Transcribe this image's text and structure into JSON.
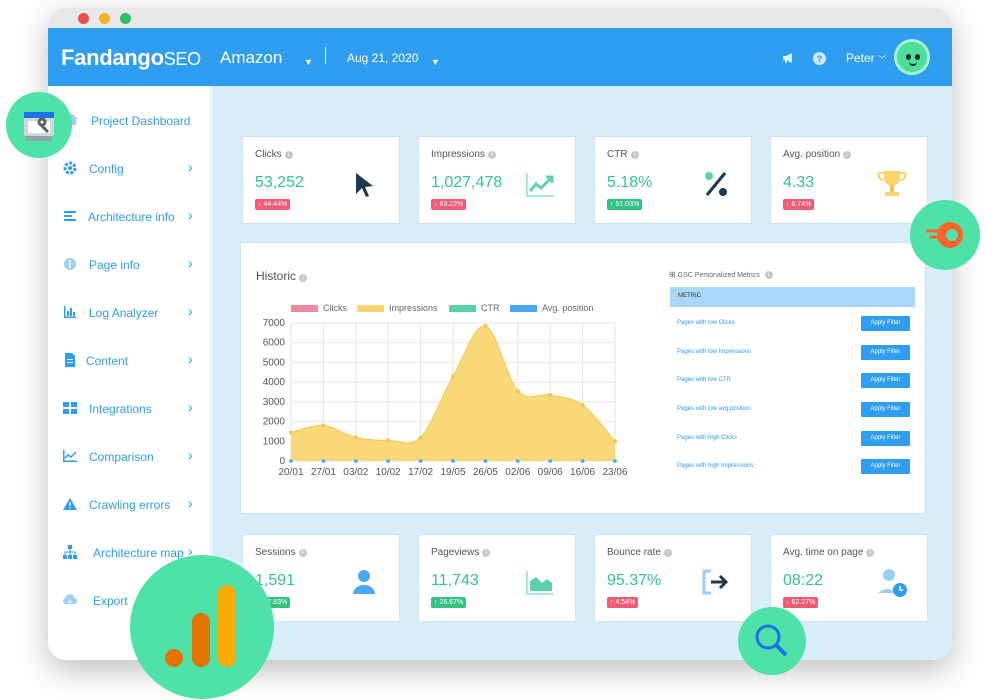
{
  "app": {
    "logo_main": "Fandango",
    "logo_suffix": "SEO"
  },
  "header": {
    "project": "Amazon",
    "date": "Aug 21, 2020",
    "help_label": "?",
    "user": "Peter"
  },
  "sidebar": {
    "items": [
      {
        "label": "Project Dashboard",
        "icon": "home-icon"
      },
      {
        "label": "Config",
        "icon": "gear-icon"
      },
      {
        "label": "Architecture info",
        "icon": "bars-icon"
      },
      {
        "label": "Page info",
        "icon": "info-icon"
      },
      {
        "label": "Log Analyzer",
        "icon": "bar-chart-icon"
      },
      {
        "label": "Content",
        "icon": "document-icon"
      },
      {
        "label": "Integrations",
        "icon": "grid-icon"
      },
      {
        "label": "Comparison",
        "icon": "line-chart-icon"
      },
      {
        "label": "Crawling errors",
        "icon": "warning-icon"
      },
      {
        "label": "Architecture map",
        "icon": "sitemap-icon"
      },
      {
        "label": "Export",
        "icon": "cloud-icon"
      }
    ]
  },
  "kpis_top": [
    {
      "title": "Clicks",
      "value": "53,252",
      "change": "↓ 44.44%",
      "trend": "down",
      "icon": "cursor-icon"
    },
    {
      "title": "Impressions",
      "value": "1,027,478",
      "change": "↓ 63.22%",
      "trend": "down",
      "icon": "trend-up-icon"
    },
    {
      "title": "CTR",
      "value": "5.18%",
      "change": "↑ 51.03%",
      "trend": "up",
      "icon": "percent-icon"
    },
    {
      "title": "Avg. position",
      "value": "4.33",
      "change": "↓ 6.74%",
      "trend": "down",
      "icon": "trophy-icon"
    }
  ],
  "kpis_bottom": [
    {
      "title": "Sessions",
      "value": "1,591",
      "change": "↑ 47.83%",
      "trend": "up",
      "icon": "user-icon"
    },
    {
      "title": "Pageviews",
      "value": "11,743",
      "change": "↑ 26.67%",
      "trend": "up",
      "icon": "area-chart-icon"
    },
    {
      "title": "Bounce rate",
      "value": "95.37%",
      "change": "↑ 4.54%",
      "trend": "down",
      "icon": "exit-icon"
    },
    {
      "title": "Avg. time on page",
      "value": "08:22",
      "change": "↓ 62.27%",
      "trend": "down",
      "icon": "user-clock-icon"
    }
  ],
  "historic": {
    "title": "Historic",
    "info": "i"
  },
  "chart_data": {
    "type": "area",
    "title": "Historic",
    "categories": [
      "20/01",
      "27/01",
      "03/02",
      "10/02",
      "17/02",
      "19/05",
      "26/05",
      "02/06",
      "09/06",
      "16/06",
      "23/06"
    ],
    "series": [
      {
        "name": "Clicks",
        "color": "#f08a9f",
        "values": [
          0,
          0,
          0,
          0,
          0,
          0,
          0,
          0,
          0,
          0,
          0
        ]
      },
      {
        "name": "Impressions",
        "color": "#fad56c",
        "values": [
          1450,
          1800,
          1200,
          1050,
          1200,
          4300,
          6850,
          3550,
          3350,
          2850,
          1000
        ]
      },
      {
        "name": "CTR",
        "color": "#5bd3a9",
        "values": [
          0,
          0,
          0,
          0,
          0,
          0,
          0,
          0,
          0,
          0,
          0
        ]
      },
      {
        "name": "Avg. position",
        "color": "#4aa8f5",
        "values": [
          0,
          0,
          0,
          0,
          0,
          0,
          0,
          0,
          0,
          0,
          0
        ]
      }
    ],
    "y_ticks": [
      0,
      1000,
      2000,
      3000,
      4000,
      5000,
      6000,
      7000
    ],
    "ylim": [
      0,
      7000
    ],
    "grid": true,
    "legend": "top"
  },
  "gsc": {
    "title": "GSC Personalized Metrics",
    "column_header": "METRIC",
    "rows": [
      {
        "label": "Pages with low Clicks",
        "button": "Apply Filter"
      },
      {
        "label": "Pages with low Impressions",
        "button": "Apply Filter"
      },
      {
        "label": "Pages with low CTR",
        "button": "Apply Filter"
      },
      {
        "label": "Pages with low avg.position",
        "button": "Apply Filter"
      },
      {
        "label": "Pages with high Clicks",
        "button": "Apply Filter"
      },
      {
        "label": "Pages with high Impressions",
        "button": "Apply Filter"
      }
    ]
  },
  "decor": {
    "icons": [
      "google-search-console-icon",
      "semrush-icon",
      "google-analytics-icon",
      "magnifier-icon"
    ],
    "accent": "#2f9df0",
    "bubble": "#4ee2a8"
  }
}
